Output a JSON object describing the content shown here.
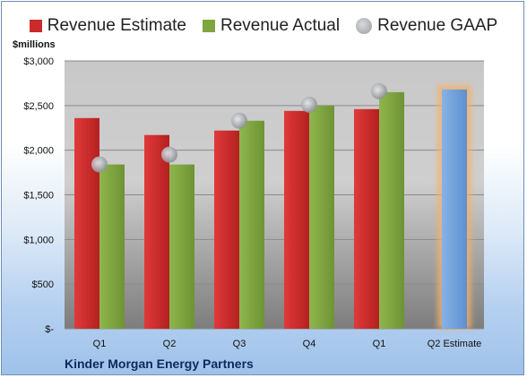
{
  "legend": {
    "estimate": "Revenue Estimate",
    "actual": "Revenue Actual",
    "gaap": "Revenue GAAP"
  },
  "colors": {
    "estimate": "#cc2a2a",
    "actual": "#7fa53f",
    "gaap": "#a9acb3",
    "forecast": "#74a3dc",
    "forecast_glow": "#f5b06a"
  },
  "unit_label": "$millions",
  "company": "Kinder Morgan Energy Partners",
  "chart_data": {
    "type": "bar",
    "categories": [
      "Q1",
      "Q2",
      "Q3",
      "Q4",
      "Q1",
      "Q2 Estimate"
    ],
    "series": [
      {
        "name": "Revenue Estimate",
        "values": [
          2360,
          2170,
          2220,
          2440,
          2460,
          null
        ]
      },
      {
        "name": "Revenue Actual",
        "values": [
          1840,
          1840,
          2330,
          2500,
          2650,
          2680
        ]
      },
      {
        "name": "Revenue GAAP",
        "values": [
          1840,
          1950,
          2330,
          2510,
          2660,
          null
        ]
      }
    ],
    "yticks": [
      "$-",
      "$500",
      "$1,000",
      "$1,500",
      "$2,000",
      "$2,500",
      "$3,000"
    ],
    "ytick_values": [
      0,
      500,
      1000,
      1500,
      2000,
      2500,
      3000
    ],
    "ylim": [
      0,
      3000
    ],
    "ylabel": "$millions",
    "grid": true,
    "legend_position": "top"
  }
}
